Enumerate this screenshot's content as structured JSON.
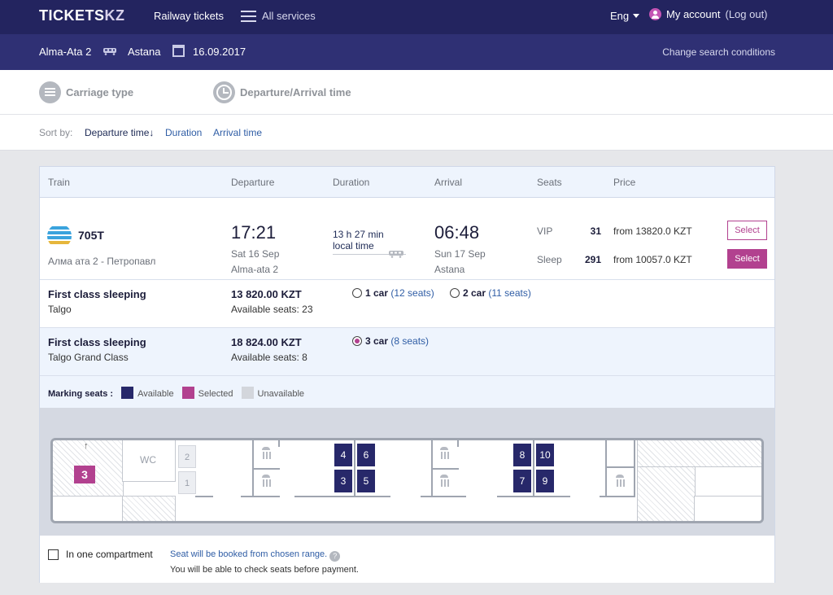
{
  "header": {
    "logo_main": "TICKETS",
    "logo_suffix": "KZ",
    "railway_link": "Railway tickets",
    "all_services": "All services",
    "language": "Eng",
    "account": "My account",
    "logout": "(Log out)"
  },
  "route": {
    "from": "Alma-Ata 2",
    "to": "Astana",
    "date": "16.09.2017",
    "change_label": "Change search conditions"
  },
  "filters": {
    "carriage_type": "Carriage type",
    "time": "Departure/Arrival time"
  },
  "sort": {
    "label": "Sort by:",
    "departure": "Departure time↓",
    "duration": "Duration",
    "arrival": "Arrival time"
  },
  "table": {
    "headers": [
      "Train",
      "Departure",
      "Duration",
      "Arrival",
      "Seats",
      "Price"
    ]
  },
  "train": {
    "number": "705T",
    "route": "Алма ата 2 - Петропавл",
    "dep_time": "17:21",
    "dep_date": "Sat 16 Sep",
    "dep_station": "Alma-ata 2",
    "duration": "13 h 27 min",
    "duration_note": "local time",
    "arr_time": "06:48",
    "arr_date": "Sun 17 Sep",
    "arr_station": "Astana",
    "classes": [
      {
        "name": "VIP",
        "count": "31",
        "price": "from 13820.0 KZT",
        "button": "Select"
      },
      {
        "name": "Sleep",
        "count": "291",
        "price": "from 10057.0 KZT",
        "button": "Select"
      }
    ]
  },
  "carriages": [
    {
      "title": "First class sleeping",
      "subtitle": "Talgo",
      "price": "13 820.00 KZT",
      "available": "Available seats: 23",
      "cars": [
        {
          "label": "1 car",
          "seats": "(12 seats)"
        },
        {
          "label": "2 car",
          "seats": "(11 seats)"
        }
      ]
    },
    {
      "title": "First class sleeping",
      "subtitle": "Talgo Grand Class",
      "price": "18 824.00 KZT",
      "available": "Available seats: 8",
      "cars": [
        {
          "label": "3 car",
          "seats": "(8 seats)"
        }
      ]
    }
  ],
  "legend": {
    "title": "Marking seats :",
    "available": "Available",
    "selected": "Selected",
    "unavailable": "Unavailable",
    "colors": {
      "available": "#27286a",
      "selected": "#b2418f",
      "unavailable": "#d3d6dc"
    }
  },
  "carmap": {
    "car_number": "3",
    "wc": "WC",
    "seats": [
      "2",
      "1",
      "4",
      "6",
      "3",
      "5",
      "8",
      "10",
      "7",
      "9"
    ]
  },
  "footer": {
    "checkbox_label": "In one compartment",
    "note": "Seat will be booked from chosen range.",
    "help": "?",
    "note2": "You will be able to check seats before payment."
  }
}
